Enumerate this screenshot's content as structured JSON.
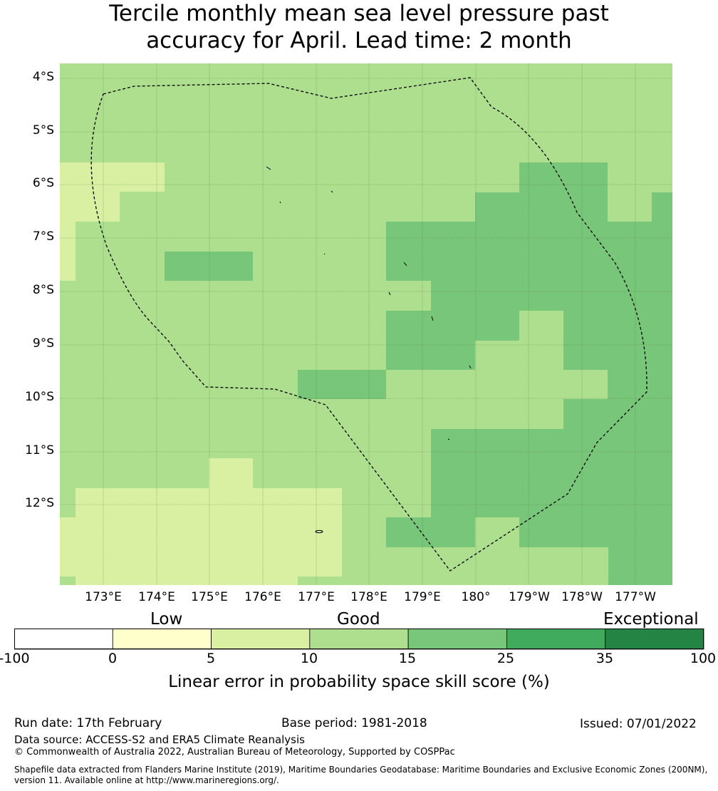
{
  "title": {
    "line1": "Tercile monthly mean sea level pressure past",
    "line2": "accuracy for April. Lead time: 2 month"
  },
  "map": {
    "lat_labels": [
      "4°S",
      "5°S",
      "6°S",
      "7°S",
      "8°S",
      "9°S",
      "10°S",
      "11°S",
      "12°S"
    ],
    "lon_labels": [
      "173°E",
      "174°E",
      "175°E",
      "176°E",
      "177°E",
      "178°E",
      "179°E",
      "180°",
      "179°W",
      "178°W",
      "177°W"
    ],
    "colors": {
      "c1": "#d9efa2",
      "c2": "#addf8e",
      "c3": "#78c679",
      "gridline": "#4a7a3a",
      "boundary": "#000000"
    }
  },
  "colorbar": {
    "categories": [
      "Low",
      "Good",
      "Exceptional"
    ],
    "ticks": [
      "-100",
      "0",
      "5",
      "10",
      "15",
      "25",
      "35",
      "100"
    ],
    "colors": [
      "#ffffff",
      "#ffffcc",
      "#d9efa2",
      "#addf8e",
      "#78c679",
      "#41ab5d",
      "#238443"
    ],
    "label": "Linear error in probability space skill score (%)"
  },
  "footer": {
    "run_date": "Run date: 17th February",
    "base_period": "Base period: 1981-2018",
    "issued": "Issued: 07/01/2022",
    "data_source": "Data source: ACCESS-S2 and ERA5 Climate Reanalysis",
    "copyright": "© Commonwealth of Australia 2022, Australian Bureau of Meteorology, Supported by COSPPac",
    "shapefile_line1": "Shapefile data extracted from Flanders Marine Institute (2019), Maritime Boundaries Geodatabase: Maritime Boundaries and Exclusive Economic Zones (200NM),",
    "shapefile_line2": "version 11. Available online at http://www.marineregions.org/."
  }
}
